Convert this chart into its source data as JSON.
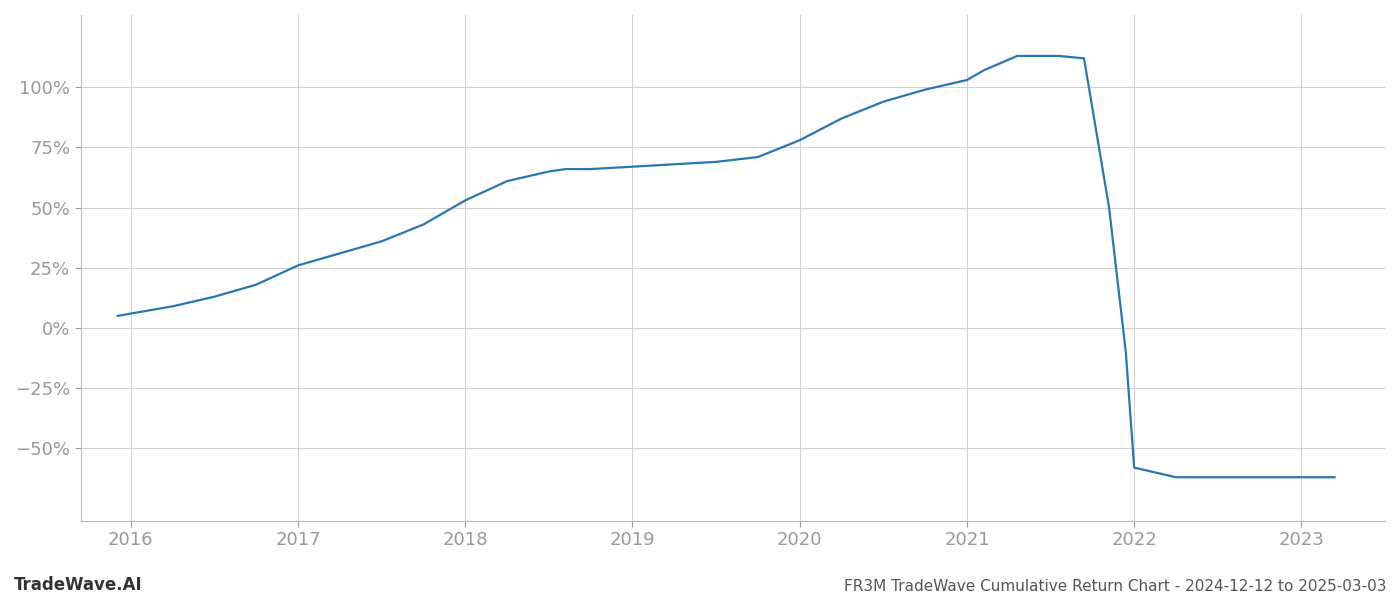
{
  "title": "FR3M TradeWave Cumulative Return Chart - 2024-12-12 to 2025-03-03",
  "watermark": "TradeWave.AI",
  "line_color": "#2878b0",
  "line_width": 1.6,
  "background_color": "#ffffff",
  "grid_color": "#d0d0d0",
  "x_values": [
    2015.92,
    2016.0,
    2016.25,
    2016.5,
    2016.75,
    2017.0,
    2017.25,
    2017.5,
    2017.75,
    2018.0,
    2018.25,
    2018.5,
    2018.6,
    2018.75,
    2019.0,
    2019.25,
    2019.5,
    2019.75,
    2020.0,
    2020.25,
    2020.5,
    2020.75,
    2021.0,
    2021.1,
    2021.2,
    2021.3,
    2021.55,
    2021.7,
    2021.85,
    2021.95,
    2022.0,
    2022.25,
    2022.5,
    2022.75,
    2023.0,
    2023.2
  ],
  "y_values": [
    5,
    6,
    9,
    13,
    18,
    26,
    31,
    36,
    43,
    53,
    61,
    65,
    66,
    66,
    67,
    68,
    69,
    71,
    78,
    87,
    94,
    99,
    103,
    107,
    110,
    113,
    113,
    112,
    50,
    -10,
    -58,
    -62,
    -62,
    -62,
    -62,
    -62
  ],
  "xlim": [
    2015.7,
    2023.5
  ],
  "ylim": [
    -80,
    130
  ],
  "yticks": [
    -50,
    -25,
    0,
    25,
    50,
    75,
    100
  ],
  "xticks": [
    2016,
    2017,
    2018,
    2019,
    2020,
    2021,
    2022,
    2023
  ],
  "xtick_labels": [
    "2016",
    "2017",
    "2018",
    "2019",
    "2020",
    "2021",
    "2022",
    "2023"
  ],
  "tick_color": "#999999",
  "title_color": "#555555",
  "watermark_color": "#333333"
}
